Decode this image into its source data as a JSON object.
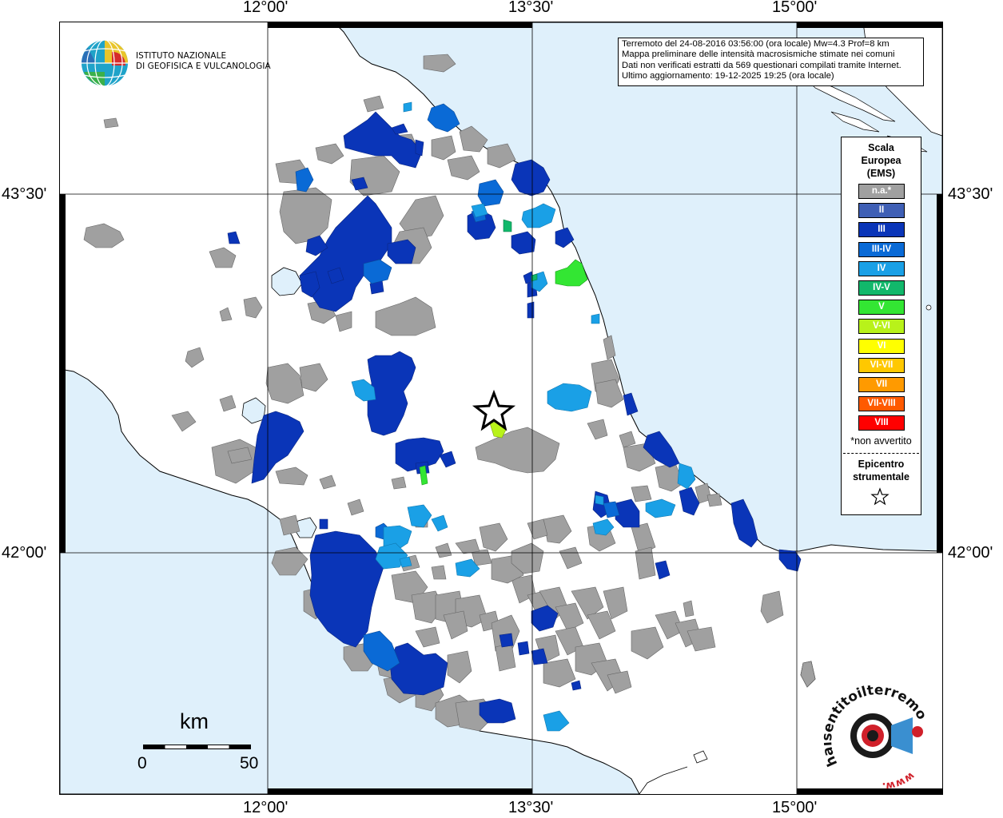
{
  "coords": {
    "top_labels": [
      "12°00'",
      "13°30'",
      "15°00'"
    ],
    "bottom_labels": [
      "12°00'",
      "13°30'",
      "15°00'"
    ],
    "left_labels": [
      "43°30'",
      "42°00'"
    ],
    "right_labels": [
      "43°30'",
      "42°00'"
    ]
  },
  "info": {
    "line1": "Terremoto del 24-08-2016 03:56:00 (ora locale) Mw=4.3 Prof=8 km",
    "line2": "Mappa preliminare delle intensità macrosismiche stimate nei comuni",
    "line3": "Dati non verificati estratti da 569 questionari compilati tramite Internet.",
    "line4": "Ultimo aggiornamento: 19-12-2025 19:25 (ora locale)"
  },
  "logo": {
    "line1": "ISTITUTO NAZIONALE",
    "line2": "DI GEOFISICA E VULCANOLOGIA"
  },
  "legend": {
    "title_line1": "Scala",
    "title_line2": "Europea",
    "title_line3": "(EMS)",
    "items": [
      {
        "label": "n.a.*",
        "color": "#a0a0a0"
      },
      {
        "label": "II",
        "color": "#3f5fb5"
      },
      {
        "label": "III",
        "color": "#0a35b8"
      },
      {
        "label": "III-IV",
        "color": "#0a6ad6"
      },
      {
        "label": "IV",
        "color": "#1aa0e6"
      },
      {
        "label": "IV-V",
        "color": "#12b86b"
      },
      {
        "label": "V",
        "color": "#33e633"
      },
      {
        "label": "V-VI",
        "color": "#b8f21a"
      },
      {
        "label": "VI",
        "color": "#ffff00"
      },
      {
        "label": "VI-VII",
        "color": "#ffc800"
      },
      {
        "label": "VII",
        "color": "#ff9a00"
      },
      {
        "label": "VII-VIII",
        "color": "#ff5a00"
      },
      {
        "label": "VIII",
        "color": "#ff0000"
      }
    ],
    "note": "*non avvertito",
    "epicenter_line1": "Epicentro",
    "epicenter_line2": "strumentale"
  },
  "scale": {
    "unit": "km",
    "min": "0",
    "max": "50"
  },
  "colors": {
    "sea": "#dff0fb",
    "na": "#a0a0a0",
    "III": "#0a35b8",
    "III_IV": "#0a6ad6",
    "IV": "#1aa0e6",
    "IV_V": "#12b86b",
    "V": "#33e633",
    "V_VI": "#b8f21a"
  },
  "watermark": {
    "text": "haisentitoilterremoto.it",
    "sub": "www."
  }
}
